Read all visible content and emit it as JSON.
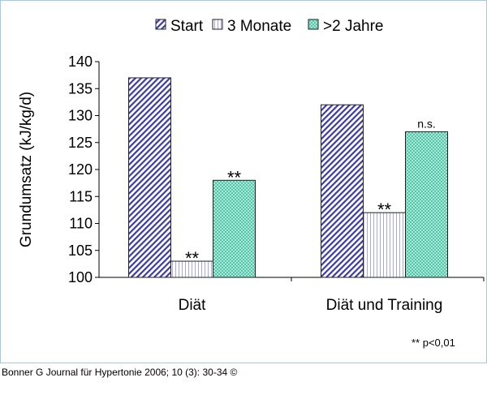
{
  "chart_data": {
    "type": "bar",
    "categories": [
      "Diät",
      "Diät und Training"
    ],
    "series": [
      {
        "name": "Start",
        "values": [
          137,
          132
        ],
        "color": "#3a3aa8",
        "pattern": "diagonal-hatch"
      },
      {
        "name": "3 Monate",
        "values": [
          103,
          112
        ],
        "color": "#9090d0",
        "pattern": "vertical-lines"
      },
      {
        "name": ">2 Jahre",
        "values": [
          118,
          127
        ],
        "color": "#40c8a8",
        "pattern": "crosshatch"
      }
    ],
    "annotations": [
      [
        "",
        "**",
        "**"
      ],
      [
        "",
        "**",
        "n.s."
      ]
    ],
    "ylabel": "Grundumsatz (kJ/kg/d)",
    "xlabel": "",
    "ylim": [
      100,
      140
    ],
    "yticks": [
      100,
      105,
      110,
      115,
      120,
      125,
      130,
      135,
      140
    ],
    "legend_position": "top",
    "grid": false,
    "footnote": "**  p<0,01"
  },
  "footer": "Bonner G Journal für Hypertonie 2006; 10 (3): 30-34 ©"
}
